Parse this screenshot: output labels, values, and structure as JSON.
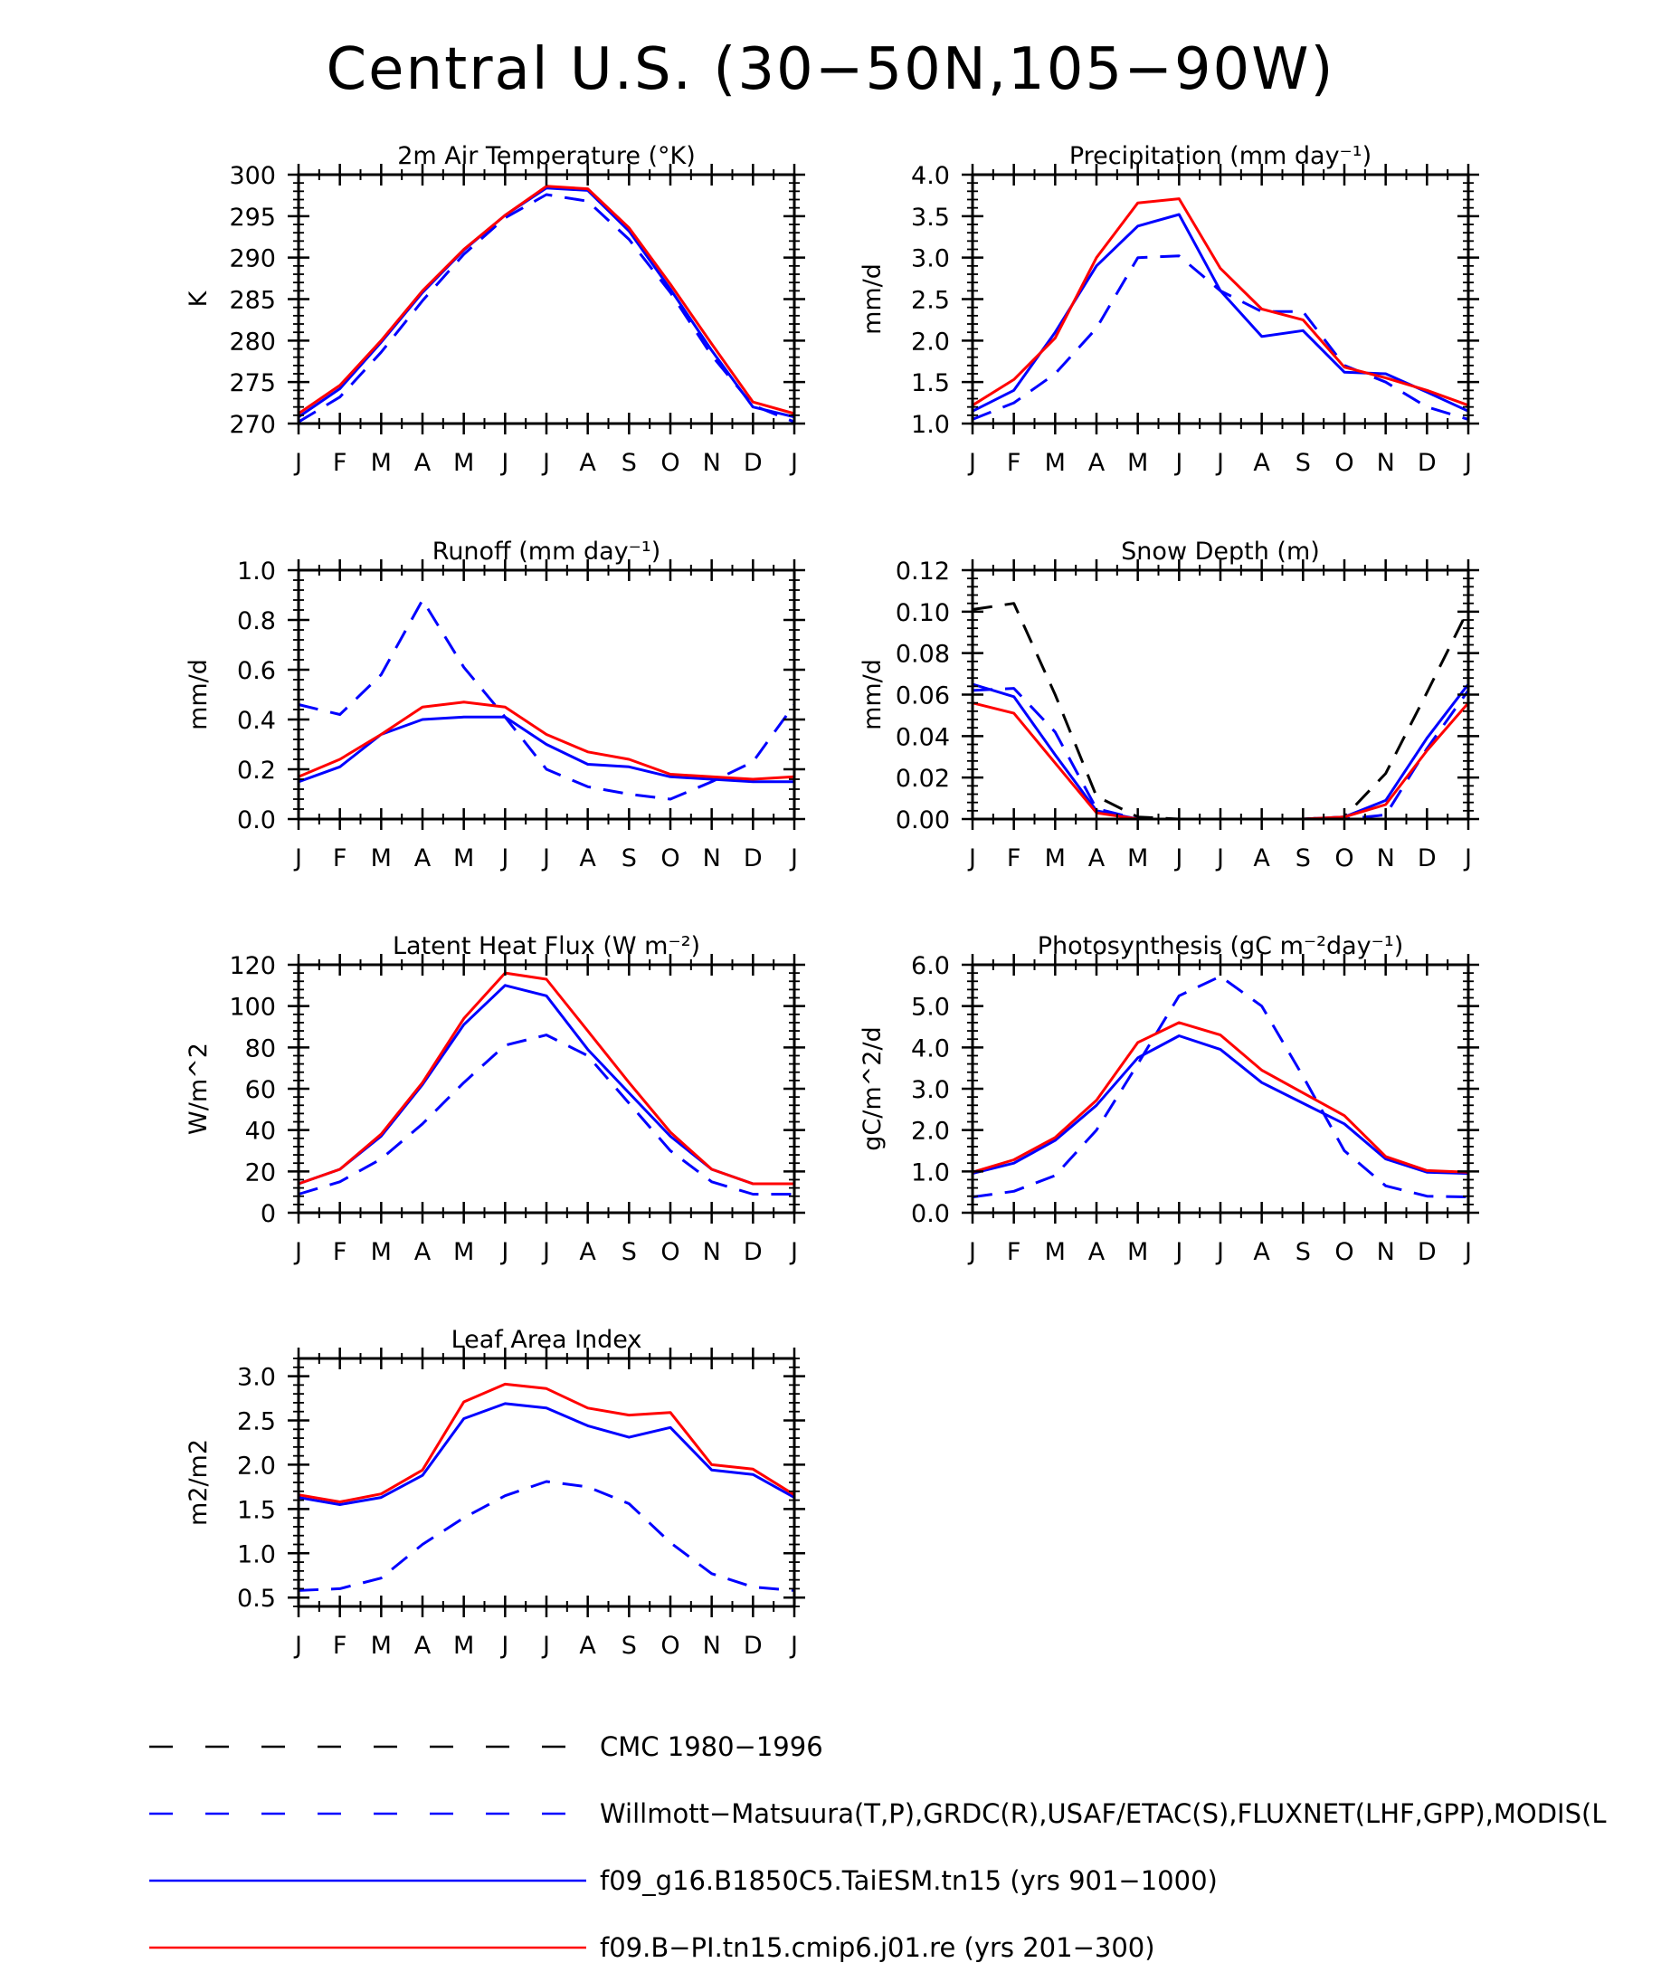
{
  "title": "Central U.S. (30−50N,105−90W)",
  "months": [
    "J",
    "F",
    "M",
    "A",
    "M",
    "J",
    "J",
    "A",
    "S",
    "O",
    "N",
    "D",
    "J"
  ],
  "colors": {
    "cmc": "#000000",
    "obs": "#0000ff",
    "taiesm": "#0000ff",
    "cmip6": "#ff0000"
  },
  "legend": [
    {
      "key": "cmc",
      "label": "CMC 1980−1996",
      "dash": "dashed"
    },
    {
      "key": "obs",
      "label": "Willmott−Matsuura(T,P),GRDC(R),USAF/ETAC(S),FLUXNET(LHF,GPP),MODIS(L",
      "dash": "dashed"
    },
    {
      "key": "taiesm",
      "label": "f09_g16.B1850C5.TaiESM.tn15 (yrs 901−1000)",
      "dash": "solid"
    },
    {
      "key": "cmip6",
      "label": "f09.B−PI.tn15.cmip6.j01.re (yrs 201−300)",
      "dash": "solid"
    }
  ],
  "chart_data": [
    {
      "type": "line",
      "title": "2m Air Temperature (°K)",
      "ylabel": "K",
      "ylim": [
        270,
        300
      ],
      "yticks": [
        270,
        275,
        280,
        285,
        290,
        295,
        300
      ],
      "ytick_labels": [
        "270",
        "275",
        "280",
        "285",
        "290",
        "295",
        "300"
      ],
      "series": [
        {
          "name": "Willmott−Matsuura(T,P),GRDC(R),USAF/ETAC(S),FLUXNET(LHF,GPP),MODIS(L",
          "key": "obs",
          "values": [
            270.2,
            273.2,
            278.6,
            284.8,
            290.4,
            294.8,
            297.6,
            296.8,
            292.2,
            285.8,
            278.2,
            272.2,
            270.2
          ]
        },
        {
          "name": "f09_g16.B1850C5.TaiESM.tn15 (yrs 901−1000)",
          "key": "taiesm",
          "values": [
            270.8,
            274.2,
            279.8,
            285.8,
            290.9,
            295.1,
            298.4,
            298.1,
            293.2,
            286.2,
            278.8,
            272.0,
            270.8
          ]
        },
        {
          "name": "f09.B−PI.tn15.cmip6.j01.re (yrs 201−300)",
          "key": "cmip6",
          "values": [
            271.2,
            274.6,
            280.0,
            286.0,
            291.0,
            295.1,
            298.6,
            298.3,
            293.6,
            286.8,
            279.6,
            272.6,
            271.2
          ]
        }
      ]
    },
    {
      "type": "line",
      "title": "Precipitation (mm day⁻¹)",
      "ylabel": "mm/d",
      "ylim": [
        1.0,
        4.0
      ],
      "yticks": [
        1.0,
        1.5,
        2.0,
        2.5,
        3.0,
        3.5,
        4.0
      ],
      "ytick_labels": [
        "1.0",
        "1.5",
        "2.0",
        "2.5",
        "3.0",
        "3.5",
        "4.0"
      ],
      "series": [
        {
          "name": "Willmott−Matsuura(T,P),GRDC(R),USAF/ETAC(S),FLUXNET(LHF,GPP),MODIS(L",
          "key": "obs",
          "values": [
            1.05,
            1.25,
            1.6,
            2.15,
            3.0,
            3.02,
            2.6,
            2.35,
            2.35,
            1.7,
            1.5,
            1.2,
            1.05
          ]
        },
        {
          "name": "f09_g16.B1850C5.TaiESM.tn15 (yrs 901−1000)",
          "key": "taiesm",
          "values": [
            1.15,
            1.4,
            2.1,
            2.9,
            3.38,
            3.52,
            2.6,
            2.05,
            2.12,
            1.62,
            1.6,
            1.38,
            1.15
          ]
        },
        {
          "name": "f09.B−PI.tn15.cmip6.j01.re (yrs 201−300)",
          "key": "cmip6",
          "values": [
            1.22,
            1.53,
            2.03,
            3.0,
            3.66,
            3.71,
            2.87,
            2.38,
            2.25,
            1.68,
            1.55,
            1.4,
            1.22
          ]
        }
      ]
    },
    {
      "type": "line",
      "title": "Runoff (mm day⁻¹)",
      "ylabel": "mm/d",
      "ylim": [
        0.0,
        1.0
      ],
      "yticks": [
        0.0,
        0.2,
        0.4,
        0.6,
        0.8,
        1.0
      ],
      "ytick_labels": [
        "0.0",
        "0.2",
        "0.4",
        "0.6",
        "0.8",
        "1.0"
      ],
      "series": [
        {
          "name": "Willmott−Matsuura(T,P),GRDC(R),USAF/ETAC(S),FLUXNET(LHF,GPP),MODIS(L",
          "key": "obs",
          "values": [
            0.46,
            0.42,
            0.58,
            0.88,
            0.61,
            0.41,
            0.2,
            0.13,
            0.1,
            0.08,
            0.15,
            0.23,
            0.46
          ]
        },
        {
          "name": "f09_g16.B1850C5.TaiESM.tn15 (yrs 901−1000)",
          "key": "taiesm",
          "values": [
            0.15,
            0.21,
            0.34,
            0.4,
            0.41,
            0.41,
            0.3,
            0.22,
            0.21,
            0.17,
            0.16,
            0.15,
            0.15
          ]
        },
        {
          "name": "f09.B−PI.tn15.cmip6.j01.re (yrs 201−300)",
          "key": "cmip6",
          "values": [
            0.17,
            0.24,
            0.34,
            0.45,
            0.47,
            0.45,
            0.34,
            0.27,
            0.24,
            0.18,
            0.17,
            0.16,
            0.17
          ]
        }
      ]
    },
    {
      "type": "line",
      "title": "Snow Depth (m)",
      "ylabel": "mm/d",
      "ylim": [
        0.0,
        0.12
      ],
      "yticks": [
        0.0,
        0.02,
        0.04,
        0.06,
        0.08,
        0.1,
        0.12
      ],
      "ytick_labels": [
        "0.00",
        "0.02",
        "0.04",
        "0.06",
        "0.08",
        "0.10",
        "0.12"
      ],
      "series": [
        {
          "name": "CMC 1980−1996",
          "key": "cmc",
          "values": [
            0.101,
            0.104,
            0.06,
            0.011,
            0.001,
            0.0,
            0.0,
            0.0,
            0.0,
            0.001,
            0.022,
            0.061,
            0.101
          ]
        },
        {
          "name": "Willmott−Matsuura(T,P),GRDC(R),USAF/ETAC(S),FLUXNET(LHF,GPP),MODIS(L",
          "key": "obs",
          "values": [
            0.062,
            0.063,
            0.042,
            0.005,
            0.0,
            0.0,
            0.0,
            0.0,
            0.0,
            0.0,
            0.002,
            0.034,
            0.062
          ]
        },
        {
          "name": "f09_g16.B1850C5.TaiESM.tn15 (yrs 901−1000)",
          "key": "taiesm",
          "values": [
            0.065,
            0.059,
            0.031,
            0.004,
            0.0,
            0.0,
            0.0,
            0.0,
            0.0,
            0.001,
            0.009,
            0.039,
            0.065
          ]
        },
        {
          "name": "f09.B−PI.tn15.cmip6.j01.re (yrs 201−300)",
          "key": "cmip6",
          "values": [
            0.056,
            0.051,
            0.027,
            0.003,
            0.0,
            0.0,
            0.0,
            0.0,
            0.0,
            0.001,
            0.007,
            0.033,
            0.056
          ]
        }
      ]
    },
    {
      "type": "line",
      "title": "Latent Heat Flux (W m⁻²)",
      "ylabel": "W/m^2",
      "ylim": [
        0,
        120
      ],
      "yticks": [
        0,
        20,
        40,
        60,
        80,
        100,
        120
      ],
      "ytick_labels": [
        "0",
        "20",
        "40",
        "60",
        "80",
        "100",
        "120"
      ],
      "series": [
        {
          "name": "Willmott−Matsuura(T,P),GRDC(R),USAF/ETAC(S),FLUXNET(LHF,GPP),MODIS(L",
          "key": "obs",
          "values": [
            9,
            15,
            26,
            43,
            63,
            81,
            86,
            76,
            53,
            30,
            15,
            9,
            9
          ]
        },
        {
          "name": "f09_g16.B1850C5.TaiESM.tn15 (yrs 901−1000)",
          "key": "taiesm",
          "values": [
            14,
            21,
            37,
            62,
            91,
            110,
            105,
            79,
            58,
            37,
            21,
            14,
            14
          ]
        },
        {
          "name": "f09.B−PI.tn15.cmip6.j01.re (yrs 201−300)",
          "key": "cmip6",
          "values": [
            14,
            21,
            38,
            63,
            94,
            116,
            113,
            88,
            63,
            39,
            21,
            14,
            14
          ]
        }
      ]
    },
    {
      "type": "line",
      "title": "Photosynthesis (gC m⁻²day⁻¹)",
      "ylabel": "gC/m^2/d",
      "ylim": [
        0.0,
        6.0
      ],
      "yticks": [
        0.0,
        1.0,
        2.0,
        3.0,
        4.0,
        5.0,
        6.0
      ],
      "ytick_labels": [
        "0.0",
        "1.0",
        "2.0",
        "3.0",
        "4.0",
        "5.0",
        "6.0"
      ],
      "series": [
        {
          "name": "Willmott−Matsuura(T,P),GRDC(R),USAF/ETAC(S),FLUXNET(LHF,GPP),MODIS(L",
          "key": "obs",
          "values": [
            0.38,
            0.52,
            0.9,
            2.0,
            3.6,
            5.25,
            5.72,
            5.0,
            3.3,
            1.5,
            0.65,
            0.4,
            0.38
          ]
        },
        {
          "name": "f09_g16.B1850C5.TaiESM.tn15 (yrs 901−1000)",
          "key": "taiesm",
          "values": [
            0.95,
            1.2,
            1.75,
            2.6,
            3.75,
            4.28,
            3.95,
            3.15,
            2.65,
            2.15,
            1.3,
            0.98,
            0.95
          ]
        },
        {
          "name": "f09.B−PI.tn15.cmip6.j01.re (yrs 201−300)",
          "key": "cmip6",
          "values": [
            0.98,
            1.28,
            1.82,
            2.72,
            4.12,
            4.6,
            4.3,
            3.45,
            2.9,
            2.35,
            1.36,
            1.02,
            0.98
          ]
        }
      ]
    },
    {
      "type": "line",
      "title": "Leaf Area Index",
      "ylabel": "m2/m2",
      "ylim": [
        0.4,
        3.2
      ],
      "yticks": [
        0.5,
        1.0,
        1.5,
        2.0,
        2.5,
        3.0
      ],
      "ytick_labels": [
        "0.5",
        "1.0",
        "1.5",
        "2.0",
        "2.5",
        "3.0"
      ],
      "series": [
        {
          "name": "Willmott−Matsuura(T,P),GRDC(R),USAF/ETAC(S),FLUXNET(LHF,GPP),MODIS(L",
          "key": "obs",
          "values": [
            0.58,
            0.6,
            0.72,
            1.1,
            1.4,
            1.65,
            1.81,
            1.75,
            1.56,
            1.12,
            0.77,
            0.62,
            0.58
          ]
        },
        {
          "name": "f09_g16.B1850C5.TaiESM.tn15 (yrs 901−1000)",
          "key": "taiesm",
          "values": [
            1.63,
            1.55,
            1.63,
            1.88,
            2.52,
            2.69,
            2.64,
            2.44,
            2.31,
            2.42,
            1.94,
            1.89,
            1.63
          ]
        },
        {
          "name": "f09.B−PI.tn15.cmip6.j01.re (yrs 201−300)",
          "key": "cmip6",
          "values": [
            1.66,
            1.58,
            1.67,
            1.94,
            2.71,
            2.91,
            2.86,
            2.64,
            2.56,
            2.59,
            2.0,
            1.95,
            1.66
          ]
        }
      ]
    }
  ]
}
